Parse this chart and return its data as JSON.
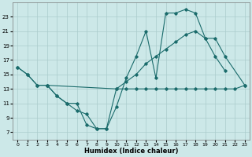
{
  "xlabel": "Humidex (Indice chaleur)",
  "ylabel": "",
  "xlim": [
    -0.5,
    23.5
  ],
  "ylim": [
    6,
    25
  ],
  "yticks": [
    7,
    9,
    11,
    13,
    15,
    17,
    19,
    21,
    23
  ],
  "xticks": [
    0,
    1,
    2,
    3,
    4,
    5,
    6,
    7,
    8,
    9,
    10,
    11,
    12,
    13,
    14,
    15,
    16,
    17,
    18,
    19,
    20,
    21,
    22,
    23
  ],
  "bg_color": "#cce8e8",
  "grid_color": "#aacccc",
  "line_color": "#1a6b6b",
  "line1_x": [
    0,
    1,
    2,
    3,
    4,
    5,
    6,
    7,
    8,
    9,
    10,
    11,
    12,
    13,
    14,
    15,
    16,
    17,
    18,
    19,
    20,
    21
  ],
  "line1_y": [
    16,
    15,
    13.5,
    13.5,
    12,
    11,
    10,
    9.5,
    7.5,
    7.5,
    10.5,
    14.5,
    17.5,
    21,
    14.5,
    23.5,
    23.5,
    24,
    23.5,
    20,
    17.5,
    15.5
  ],
  "line2_x": [
    0,
    1,
    2,
    3,
    4,
    5,
    6,
    7,
    8,
    9,
    10,
    11,
    12,
    13,
    14,
    15,
    16,
    17,
    18,
    19,
    20,
    21,
    22,
    23
  ],
  "line2_y": [
    16,
    15,
    13.5,
    13.5,
    12,
    11,
    11,
    8,
    7.5,
    7.5,
    13,
    13,
    13,
    13,
    13,
    13,
    13,
    13,
    13,
    13,
    13,
    13,
    13,
    13.5
  ],
  "line3_x": [
    3,
    10,
    11,
    12,
    13,
    14,
    15,
    16,
    17,
    18,
    19,
    20,
    21,
    23
  ],
  "line3_y": [
    13.5,
    13,
    14,
    15,
    16.5,
    17.5,
    18.5,
    19.5,
    20.5,
    21,
    20,
    20,
    17.5,
    13.5
  ],
  "figsize": [
    3.2,
    2.0
  ],
  "dpi": 100
}
